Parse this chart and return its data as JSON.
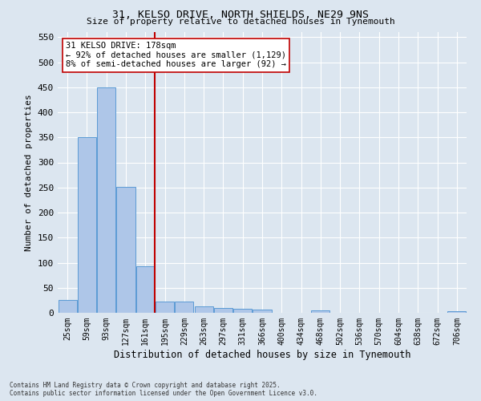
{
  "title_line1": "31, KELSO DRIVE, NORTH SHIELDS, NE29 9NS",
  "title_line2": "Size of property relative to detached houses in Tynemouth",
  "xlabel": "Distribution of detached houses by size in Tynemouth",
  "ylabel": "Number of detached properties",
  "categories": [
    "25sqm",
    "59sqm",
    "93sqm",
    "127sqm",
    "161sqm",
    "195sqm",
    "229sqm",
    "263sqm",
    "297sqm",
    "331sqm",
    "366sqm",
    "400sqm",
    "434sqm",
    "468sqm",
    "502sqm",
    "536sqm",
    "570sqm",
    "604sqm",
    "638sqm",
    "672sqm",
    "706sqm"
  ],
  "values": [
    25,
    350,
    450,
    252,
    93,
    22,
    22,
    13,
    10,
    8,
    6,
    0,
    0,
    5,
    0,
    0,
    0,
    0,
    0,
    0,
    4
  ],
  "bar_color": "#aec6e8",
  "bar_edge_color": "#5b9bd5",
  "vline_color": "#c00000",
  "annotation_text": "31 KELSO DRIVE: 178sqm\n← 92% of detached houses are smaller (1,129)\n8% of semi-detached houses are larger (92) →",
  "annotation_box_color": "white",
  "annotation_box_edge": "#c00000",
  "ylim": [
    0,
    560
  ],
  "yticks": [
    0,
    50,
    100,
    150,
    200,
    250,
    300,
    350,
    400,
    450,
    500,
    550
  ],
  "background_color": "#dce6f0",
  "grid_color": "white",
  "footnote": "Contains HM Land Registry data © Crown copyright and database right 2025.\nContains public sector information licensed under the Open Government Licence v3.0."
}
